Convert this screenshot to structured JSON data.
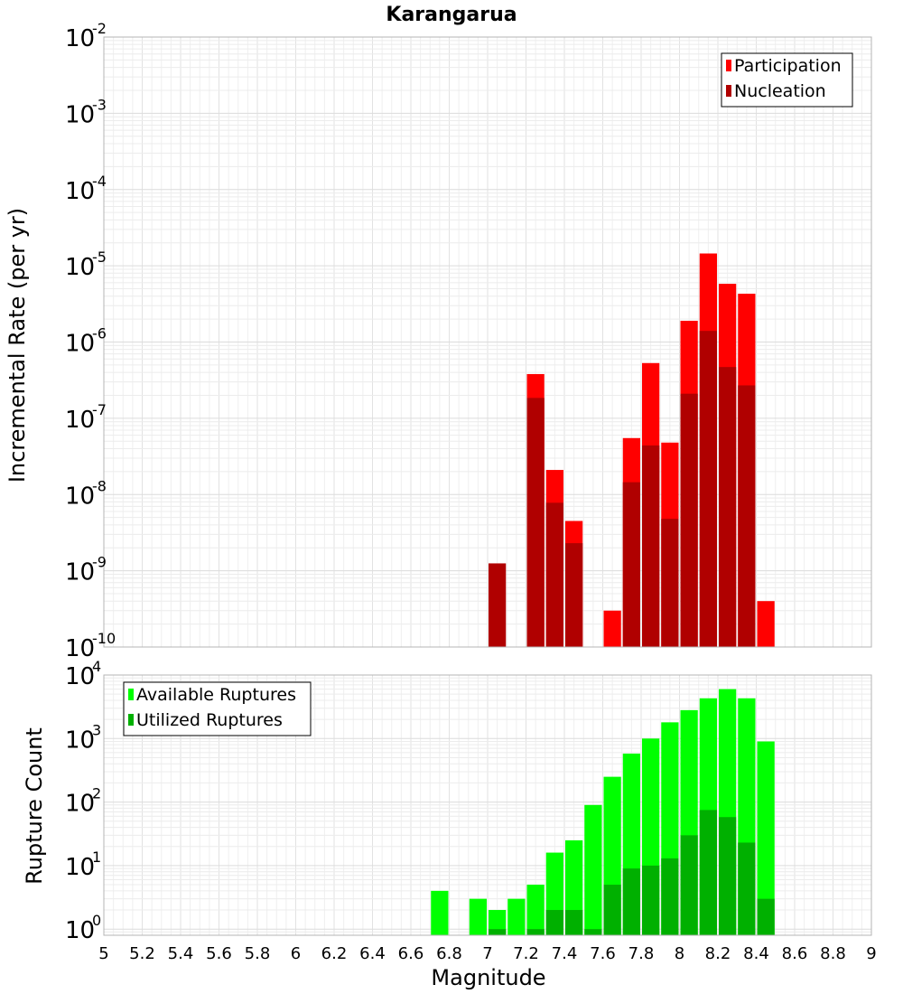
{
  "chart_data": [
    {
      "type": "bar",
      "title": "Karangarua",
      "xlabel": "",
      "ylabel": "Incremental Rate (per yr)",
      "yscale": "log",
      "ylim": [
        1e-10,
        0.01
      ],
      "xlim": [
        5,
        9
      ],
      "grid": true,
      "legend_position": "top-right",
      "overlay": true,
      "series": [
        {
          "name": "Participation",
          "color": "#ff0000",
          "points": [
            {
              "x": 7.25,
              "y": 3.8e-07
            },
            {
              "x": 7.35,
              "y": 2.1e-08
            },
            {
              "x": 7.45,
              "y": 4.5e-09
            },
            {
              "x": 7.65,
              "y": 3e-10
            },
            {
              "x": 7.75,
              "y": 5.5e-08
            },
            {
              "x": 7.85,
              "y": 5.3e-07
            },
            {
              "x": 7.95,
              "y": 4.8e-08
            },
            {
              "x": 8.05,
              "y": 1.9e-06
            },
            {
              "x": 8.15,
              "y": 1.45e-05
            },
            {
              "x": 8.25,
              "y": 5.8e-06
            },
            {
              "x": 8.35,
              "y": 4.3e-06
            },
            {
              "x": 8.45,
              "y": 4e-10
            }
          ]
        },
        {
          "name": "Nucleation",
          "color": "#b00000",
          "points": [
            {
              "x": 7.05,
              "y": 1.25e-09
            },
            {
              "x": 7.25,
              "y": 1.85e-07
            },
            {
              "x": 7.35,
              "y": 7.8e-09
            },
            {
              "x": 7.45,
              "y": 2.3e-09
            },
            {
              "x": 7.75,
              "y": 1.45e-08
            },
            {
              "x": 7.85,
              "y": 4.4e-08
            },
            {
              "x": 7.95,
              "y": 4.8e-09
            },
            {
              "x": 8.05,
              "y": 2.1e-07
            },
            {
              "x": 8.15,
              "y": 1.4e-06
            },
            {
              "x": 8.25,
              "y": 4.7e-07
            },
            {
              "x": 8.35,
              "y": 2.7e-07
            }
          ]
        }
      ]
    },
    {
      "type": "bar",
      "title": "",
      "xlabel": "Magnitude",
      "ylabel": "Rupture Count",
      "yscale": "log",
      "ylim": [
        0.8,
        10000
      ],
      "xlim": [
        5,
        9
      ],
      "grid": true,
      "legend_position": "top-left",
      "overlay": true,
      "x_ticks": [
        "5",
        "5.2",
        "5.4",
        "5.6",
        "5.8",
        "6",
        "6.2",
        "6.4",
        "6.6",
        "6.8",
        "7",
        "7.2",
        "7.4",
        "7.6",
        "7.8",
        "8",
        "8.2",
        "8.4",
        "8.6",
        "8.8",
        "9"
      ],
      "series": [
        {
          "name": "Available Ruptures",
          "color": "#00ff00",
          "points": [
            {
              "x": 6.75,
              "y": 4
            },
            {
              "x": 6.95,
              "y": 3
            },
            {
              "x": 7.05,
              "y": 2
            },
            {
              "x": 7.15,
              "y": 3
            },
            {
              "x": 7.25,
              "y": 5
            },
            {
              "x": 7.35,
              "y": 16
            },
            {
              "x": 7.45,
              "y": 25
            },
            {
              "x": 7.55,
              "y": 90
            },
            {
              "x": 7.65,
              "y": 250
            },
            {
              "x": 7.75,
              "y": 580
            },
            {
              "x": 7.85,
              "y": 1000
            },
            {
              "x": 7.95,
              "y": 1800
            },
            {
              "x": 8.05,
              "y": 2800
            },
            {
              "x": 8.15,
              "y": 4300
            },
            {
              "x": 8.25,
              "y": 6000
            },
            {
              "x": 8.35,
              "y": 4300
            },
            {
              "x": 8.45,
              "y": 900
            }
          ]
        },
        {
          "name": "Utilized Ruptures",
          "color": "#00b000",
          "points": [
            {
              "x": 7.05,
              "y": 1
            },
            {
              "x": 7.25,
              "y": 1
            },
            {
              "x": 7.35,
              "y": 2
            },
            {
              "x": 7.45,
              "y": 2
            },
            {
              "x": 7.55,
              "y": 1
            },
            {
              "x": 7.65,
              "y": 5
            },
            {
              "x": 7.75,
              "y": 9
            },
            {
              "x": 7.85,
              "y": 10
            },
            {
              "x": 7.95,
              "y": 13
            },
            {
              "x": 8.05,
              "y": 30
            },
            {
              "x": 8.15,
              "y": 75
            },
            {
              "x": 8.25,
              "y": 58
            },
            {
              "x": 8.35,
              "y": 23
            },
            {
              "x": 8.45,
              "y": 3
            }
          ]
        }
      ]
    }
  ]
}
